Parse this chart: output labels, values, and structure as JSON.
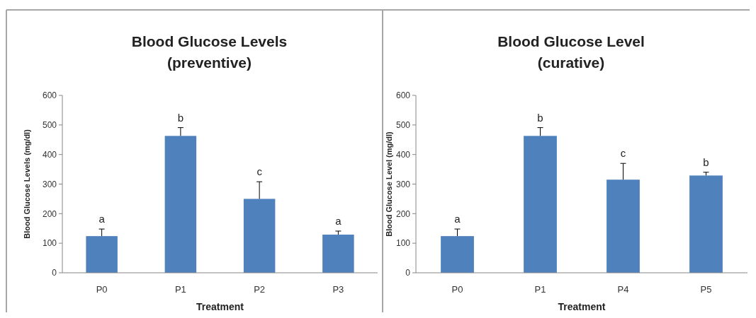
{
  "chart_data": [
    {
      "type": "bar",
      "title": "Blood Glucose Levels\n(preventive)",
      "xlabel": "Treatment",
      "ylabel": "Blood Glucose Levels (mg/dl)",
      "categories": [
        "P0",
        "P1",
        "P2",
        "P3"
      ],
      "values": [
        124,
        463,
        250,
        129
      ],
      "errors": [
        [
          124,
          148
        ],
        [
          463,
          491
        ],
        [
          250,
          308
        ],
        [
          129,
          141
        ]
      ],
      "color": "#4f81bd",
      "ylim": [
        0,
        600
      ],
      "yticks": [
        0,
        100,
        200,
        300,
        400,
        500,
        600
      ],
      "grid": false,
      "annotations": [
        "a",
        "b",
        "c",
        "a"
      ]
    },
    {
      "type": "bar",
      "title": "Blood Glucose Level\n(curative)",
      "xlabel": "Treatment",
      "ylabel": "Blood Glucose Level (mg/dl)",
      "categories": [
        "P0",
        "P1",
        "P4",
        "P5"
      ],
      "values": [
        124,
        463,
        315,
        329
      ],
      "errors": [
        [
          124,
          148
        ],
        [
          463,
          491
        ],
        [
          315,
          370
        ],
        [
          329,
          340
        ]
      ],
      "color": "#4f81bd",
      "ylim": [
        0,
        600
      ],
      "yticks": [
        0,
        100,
        200,
        300,
        400,
        500,
        600
      ],
      "grid": false,
      "annotations": [
        "a",
        "b",
        "c",
        "b"
      ]
    }
  ]
}
